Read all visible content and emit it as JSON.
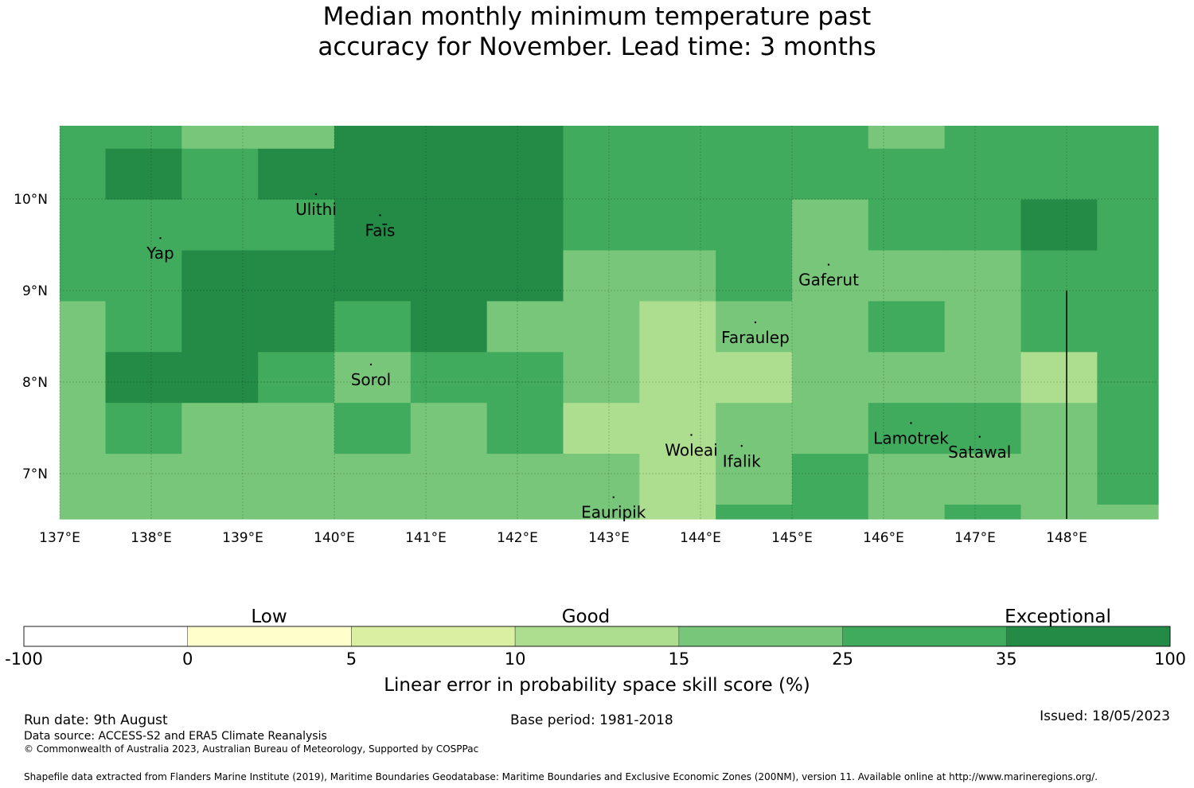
{
  "title": {
    "line1": "Median monthly minimum temperature past",
    "line2": "accuracy for November. Lead time: 3 months"
  },
  "map": {
    "lon_range": [
      137,
      149
    ],
    "lat_range": [
      6.5,
      10.8
    ],
    "x_ticks": [
      "137°E",
      "138°E",
      "139°E",
      "140°E",
      "141°E",
      "142°E",
      "143°E",
      "144°E",
      "145°E",
      "146°E",
      "147°E",
      "148°E"
    ],
    "y_ticks": [
      "10°N",
      "9°N",
      "8°N",
      "7°N"
    ],
    "grid_cells": [
      [
        "#41ab5d",
        "#41ab5d",
        "#78c679",
        "#78c679",
        "#238b45",
        "#238b45",
        "#238b45",
        "#41ab5d",
        "#41ab5d",
        "#41ab5d",
        "#41ab5d",
        "#78c679",
        "#41ab5d",
        "#41ab5d",
        "#41ab5d"
      ],
      [
        "#41ab5d",
        "#238b45",
        "#41ab5d",
        "#238b45",
        "#238b45",
        "#238b45",
        "#238b45",
        "#41ab5d",
        "#41ab5d",
        "#41ab5d",
        "#41ab5d",
        "#41ab5d",
        "#41ab5d",
        "#41ab5d",
        "#41ab5d"
      ],
      [
        "#41ab5d",
        "#41ab5d",
        "#41ab5d",
        "#41ab5d",
        "#238b45",
        "#238b45",
        "#238b45",
        "#41ab5d",
        "#41ab5d",
        "#41ab5d",
        "#78c679",
        "#41ab5d",
        "#41ab5d",
        "#238b45",
        "#41ab5d"
      ],
      [
        "#41ab5d",
        "#41ab5d",
        "#238b45",
        "#238b45",
        "#238b45",
        "#238b45",
        "#238b45",
        "#78c679",
        "#78c679",
        "#41ab5d",
        "#78c679",
        "#78c679",
        "#78c679",
        "#41ab5d",
        "#41ab5d"
      ],
      [
        "#78c679",
        "#41ab5d",
        "#238b45",
        "#238b45",
        "#41ab5d",
        "#238b45",
        "#78c679",
        "#78c679",
        "#addd8e",
        "#78c679",
        "#78c679",
        "#41ab5d",
        "#78c679",
        "#41ab5d",
        "#41ab5d"
      ],
      [
        "#78c679",
        "#238b45",
        "#238b45",
        "#41ab5d",
        "#78c679",
        "#41ab5d",
        "#41ab5d",
        "#78c679",
        "#addd8e",
        "#addd8e",
        "#78c679",
        "#78c679",
        "#78c679",
        "#addd8e",
        "#41ab5d"
      ],
      [
        "#78c679",
        "#41ab5d",
        "#78c679",
        "#78c679",
        "#41ab5d",
        "#78c679",
        "#41ab5d",
        "#addd8e",
        "#addd8e",
        "#78c679",
        "#78c679",
        "#41ab5d",
        "#41ab5d",
        "#78c679",
        "#41ab5d"
      ],
      [
        "#78c679",
        "#78c679",
        "#78c679",
        "#78c679",
        "#78c679",
        "#78c679",
        "#78c679",
        "#78c679",
        "#addd8e",
        "#78c679",
        "#41ab5d",
        "#78c679",
        "#78c679",
        "#78c679",
        "#41ab5d"
      ],
      [
        "#78c679",
        "#78c679",
        "#78c679",
        "#78c679",
        "#78c679",
        "#78c679",
        "#78c679",
        "#78c679",
        "#addd8e",
        "#41ab5d",
        "#41ab5d",
        "#78c679",
        "#41ab5d",
        "#78c679",
        "#78c679"
      ]
    ],
    "islands": [
      {
        "name": "Ulithi",
        "lon": 139.8,
        "lat": 10.0
      },
      {
        "name": "Faīs",
        "lon": 140.5,
        "lat": 9.77
      },
      {
        "name": "Yap",
        "lon": 138.1,
        "lat": 9.52
      },
      {
        "name": "Gaferut",
        "lon": 145.4,
        "lat": 9.23
      },
      {
        "name": "Faraulep",
        "lon": 144.6,
        "lat": 8.6
      },
      {
        "name": "Sorol",
        "lon": 140.4,
        "lat": 8.14
      },
      {
        "name": "Woleai",
        "lon": 143.9,
        "lat": 7.37
      },
      {
        "name": "Ifalik",
        "lon": 144.45,
        "lat": 7.25
      },
      {
        "name": "Lamotrek",
        "lon": 146.3,
        "lat": 7.5
      },
      {
        "name": "Satawal",
        "lon": 147.05,
        "lat": 7.35
      },
      {
        "name": "Eauripik",
        "lon": 143.05,
        "lat": 6.69
      }
    ],
    "boundary_lon": 148.0,
    "boundary_lat_top": 9.0
  },
  "legend": {
    "categories": [
      "Low",
      "Good",
      "Exceptional"
    ],
    "ticks": [
      "-100",
      "0",
      "5",
      "10",
      "15",
      "25",
      "35",
      "100"
    ],
    "colors": [
      "#ffffff",
      "#ffffcc",
      "#d9f0a3",
      "#addd8e",
      "#78c679",
      "#41ab5d",
      "#238b45"
    ],
    "label": "Linear error in probability space skill score (%)"
  },
  "footer": {
    "run_date": "Run date: 9th August",
    "base_period": "Base period: 1981-2018",
    "issued": "Issued: 18/05/2023",
    "data_source": "Data source: ACCESS-S2 and ERA5 Climate Reanalysis",
    "copyright": "© Commonwealth of Australia 2023, Australian Bureau of Meteorology, Supported by COSPPac",
    "shapefile": "Shapefile data extracted from Flanders Marine Institute (2019), Maritime Boundaries Geodatabase: Maritime Boundaries and Exclusive Economic Zones (200NM), version 11. Available online at http://www.marineregions.org/."
  }
}
